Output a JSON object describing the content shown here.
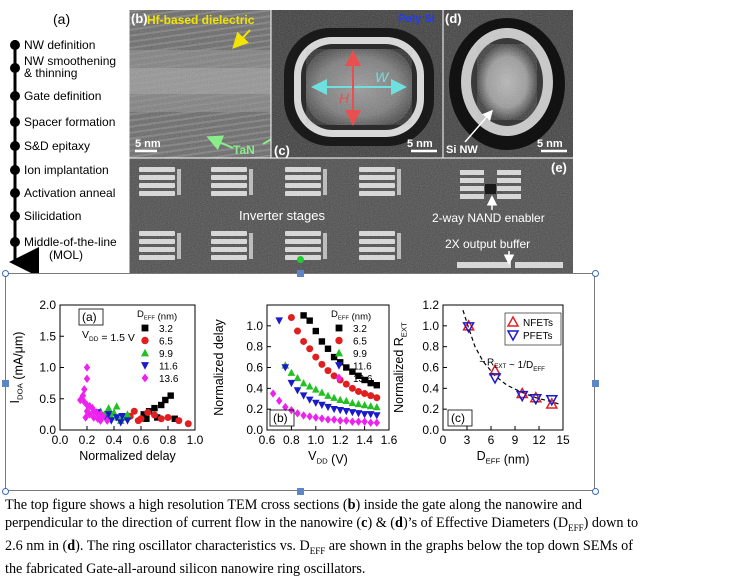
{
  "top_figure": {
    "panel_a_label": "(a)",
    "process_steps": [
      "NW definition",
      "NW smoothening & thinning",
      "Gate definition",
      "Spacer formation",
      "S&D epitaxy",
      "Ion implantation",
      "Activation anneal",
      "Silicidation",
      "Middle-of-the-line (MOL)"
    ],
    "panel_b_label": "(b)",
    "panel_b_annotation": "Hf-based dielectric",
    "panel_b_scale": "5 nm",
    "panel_b_tan": "TaN",
    "panel_c_label": "(c)",
    "panel_c_polysi": "Poly Si",
    "panel_c_w": "W",
    "panel_c_h": "H",
    "panel_c_scale": "5 nm",
    "panel_d_label": "(d)",
    "panel_d_sinw": "Si NW",
    "panel_d_scale": "5 nm",
    "panel_e_label": "(e)",
    "panel_e_inverter": "Inverter stages",
    "panel_e_nand": "2-way NAND enabler",
    "panel_e_buffer": "2X output buffer"
  },
  "chart_data": [
    {
      "type": "scatter",
      "panel_label": "(a)",
      "annotation": "V_DD = 1.5 V",
      "xlabel": "Normalized delay",
      "ylabel": "I_DOA (mA/μm)",
      "xlim": [
        0.0,
        1.0
      ],
      "ylim": [
        0.0,
        2.0
      ],
      "xticks": [
        "0.0",
        "0.2",
        "0.4",
        "0.6",
        "0.8",
        "1.0"
      ],
      "yticks": [
        "0.0",
        "0.5",
        "1.0",
        "1.5",
        "2.0"
      ],
      "legend_title": "D_EFF (nm)",
      "legend_placement": "top-right",
      "series": [
        {
          "name": "3.2",
          "color": "#000000",
          "marker": "square",
          "points": [
            [
              0.62,
              0.25
            ],
            [
              0.66,
              0.3
            ],
            [
              0.7,
              0.35
            ],
            [
              0.75,
              0.4
            ],
            [
              0.78,
              0.48
            ],
            [
              0.82,
              0.55
            ],
            [
              0.85,
              0.18
            ],
            [
              0.72,
              0.2
            ],
            [
              0.64,
              0.18
            ]
          ]
        },
        {
          "name": "6.5",
          "color": "#e02020",
          "marker": "circle",
          "points": [
            [
              0.5,
              0.2
            ],
            [
              0.55,
              0.3
            ],
            [
              0.6,
              0.18
            ],
            [
              0.65,
              0.28
            ],
            [
              0.7,
              0.24
            ],
            [
              0.75,
              0.18
            ],
            [
              0.8,
              0.2
            ],
            [
              0.88,
              0.15
            ],
            [
              0.95,
              0.1
            ],
            [
              0.58,
              0.15
            ],
            [
              0.52,
              0.22
            ]
          ]
        },
        {
          "name": "9.9",
          "color": "#22c022",
          "marker": "triangle-up",
          "points": [
            [
              0.3,
              0.3
            ],
            [
              0.33,
              0.25
            ],
            [
              0.36,
              0.35
            ],
            [
              0.4,
              0.28
            ],
            [
              0.43,
              0.2
            ],
            [
              0.45,
              0.15
            ],
            [
              0.48,
              0.2
            ],
            [
              0.5,
              0.25
            ],
            [
              0.38,
              0.22
            ],
            [
              0.42,
              0.38
            ]
          ]
        },
        {
          "name": "11.6",
          "color": "#1a1acc",
          "marker": "triangle-down",
          "points": [
            [
              0.3,
              0.2
            ],
            [
              0.34,
              0.18
            ],
            [
              0.38,
              0.15
            ],
            [
              0.42,
              0.2
            ],
            [
              0.45,
              0.12
            ],
            [
              0.5,
              0.15
            ],
            [
              0.36,
              0.25
            ],
            [
              0.28,
              0.28
            ],
            [
              0.46,
              0.22
            ]
          ]
        },
        {
          "name": "13.6",
          "color": "#ee22ee",
          "marker": "diamond",
          "points": [
            [
              0.2,
              1.0
            ],
            [
              0.2,
              0.82
            ],
            [
              0.18,
              0.65
            ],
            [
              0.17,
              0.55
            ],
            [
              0.15,
              0.48
            ],
            [
              0.18,
              0.45
            ],
            [
              0.2,
              0.4
            ],
            [
              0.22,
              0.38
            ],
            [
              0.24,
              0.35
            ],
            [
              0.25,
              0.3
            ],
            [
              0.27,
              0.28
            ],
            [
              0.3,
              0.25
            ],
            [
              0.32,
              0.22
            ],
            [
              0.2,
              0.3
            ],
            [
              0.22,
              0.25
            ],
            [
              0.25,
              0.2
            ],
            [
              0.28,
              0.18
            ],
            [
              0.3,
              0.15
            ],
            [
              0.35,
              0.15
            ],
            [
              0.19,
              0.2
            ]
          ]
        }
      ]
    },
    {
      "type": "scatter",
      "panel_label": "(b)",
      "xlabel": "V_DD (V)",
      "ylabel": "Normalized delay",
      "xlim": [
        0.6,
        1.6
      ],
      "ylim": [
        0.0,
        1.2
      ],
      "xticks": [
        "0.6",
        "0.8",
        "1.0",
        "1.2",
        "1.4",
        "1.6"
      ],
      "yticks": [
        "0.0",
        "0.2",
        "0.4",
        "0.6",
        "0.8",
        "1.0"
      ],
      "legend_title": "D_EFF (nm)",
      "legend_placement": "top-right",
      "series": [
        {
          "name": "3.2",
          "color": "#000000",
          "marker": "square",
          "points": [
            [
              0.9,
              1.1
            ],
            [
              0.95,
              1.05
            ],
            [
              1.0,
              0.95
            ],
            [
              1.05,
              0.85
            ],
            [
              1.1,
              0.78
            ],
            [
              1.15,
              0.7
            ],
            [
              1.2,
              0.65
            ],
            [
              1.25,
              0.6
            ],
            [
              1.3,
              0.56
            ],
            [
              1.35,
              0.52
            ],
            [
              1.4,
              0.48
            ],
            [
              1.45,
              0.45
            ],
            [
              1.5,
              0.43
            ]
          ]
        },
        {
          "name": "6.5",
          "color": "#e02020",
          "marker": "circle",
          "points": [
            [
              0.8,
              1.08
            ],
            [
              0.85,
              0.95
            ],
            [
              0.9,
              0.85
            ],
            [
              0.95,
              0.78
            ],
            [
              1.0,
              0.7
            ],
            [
              1.05,
              0.63
            ],
            [
              1.1,
              0.57
            ],
            [
              1.15,
              0.52
            ],
            [
              1.2,
              0.48
            ],
            [
              1.25,
              0.44
            ],
            [
              1.3,
              0.4
            ],
            [
              1.35,
              0.37
            ],
            [
              1.4,
              0.35
            ],
            [
              1.45,
              0.33
            ],
            [
              1.5,
              0.31
            ]
          ]
        },
        {
          "name": "9.9",
          "color": "#22c022",
          "marker": "triangle-up",
          "points": [
            [
              0.75,
              0.62
            ],
            [
              0.8,
              0.55
            ],
            [
              0.85,
              0.5
            ],
            [
              0.9,
              0.45
            ],
            [
              0.95,
              0.42
            ],
            [
              1.0,
              0.39
            ],
            [
              1.05,
              0.36
            ],
            [
              1.1,
              0.33
            ],
            [
              1.15,
              0.31
            ],
            [
              1.2,
              0.29
            ],
            [
              1.25,
              0.28
            ],
            [
              1.3,
              0.26
            ],
            [
              1.35,
              0.25
            ],
            [
              1.4,
              0.24
            ],
            [
              1.45,
              0.23
            ],
            [
              1.5,
              0.22
            ]
          ]
        },
        {
          "name": "11.6",
          "color": "#1a1acc",
          "marker": "triangle-down",
          "points": [
            [
              0.7,
              1.05
            ],
            [
              0.75,
              0.6
            ],
            [
              0.8,
              0.45
            ],
            [
              0.85,
              0.38
            ],
            [
              0.9,
              0.33
            ],
            [
              0.95,
              0.29
            ],
            [
              1.0,
              0.26
            ],
            [
              1.05,
              0.24
            ],
            [
              1.1,
              0.22
            ],
            [
              1.15,
              0.2
            ],
            [
              1.2,
              0.19
            ],
            [
              1.25,
              0.18
            ],
            [
              1.3,
              0.17
            ],
            [
              1.35,
              0.16
            ],
            [
              1.4,
              0.15
            ],
            [
              1.45,
              0.15
            ],
            [
              1.5,
              0.14
            ]
          ]
        },
        {
          "name": "13.6",
          "color": "#ee22ee",
          "marker": "diamond",
          "points": [
            [
              0.65,
              0.35
            ],
            [
              0.7,
              0.28
            ],
            [
              0.75,
              0.22
            ],
            [
              0.8,
              0.19
            ],
            [
              0.85,
              0.16
            ],
            [
              0.9,
              0.14
            ],
            [
              0.95,
              0.13
            ],
            [
              1.0,
              0.12
            ],
            [
              1.05,
              0.11
            ],
            [
              1.1,
              0.1
            ],
            [
              1.15,
              0.1
            ],
            [
              1.2,
              0.09
            ],
            [
              1.25,
              0.09
            ],
            [
              1.3,
              0.08
            ],
            [
              1.35,
              0.08
            ],
            [
              1.4,
              0.08
            ],
            [
              1.45,
              0.07
            ],
            [
              1.5,
              0.07
            ]
          ]
        }
      ]
    },
    {
      "type": "scatter",
      "panel_label": "(c)",
      "xlabel": "D_EFF (nm)",
      "ylabel": "Normalized R_EXT",
      "xlim": [
        0,
        15
      ],
      "ylim": [
        0.0,
        1.2
      ],
      "xticks": [
        "0",
        "3",
        "6",
        "9",
        "12",
        "15"
      ],
      "yticks": [
        "0.0",
        "0.2",
        "0.4",
        "0.6",
        "0.8",
        "1.0",
        "1.2"
      ],
      "annotation": "R_EXT ~ 1/D_EFF",
      "legend_placement": "top-right",
      "series": [
        {
          "name": "NFETs",
          "color": "#e02020",
          "marker": "triangle-up-open",
          "points": [
            [
              3.2,
              1.0
            ],
            [
              6.5,
              0.57
            ],
            [
              9.9,
              0.35
            ],
            [
              11.6,
              0.31
            ],
            [
              13.6,
              0.25
            ]
          ]
        },
        {
          "name": "PFETs",
          "color": "#1a1acc",
          "marker": "triangle-down-open",
          "points": [
            [
              3.2,
              0.99
            ],
            [
              6.5,
              0.5
            ],
            [
              9.9,
              0.33
            ],
            [
              11.6,
              0.3
            ],
            [
              13.6,
              0.29
            ]
          ]
        }
      ],
      "fit_curve": {
        "style": "dashed",
        "points": [
          [
            2.5,
            1.15
          ],
          [
            3.2,
            0.98
          ],
          [
            4,
            0.8
          ],
          [
            5,
            0.66
          ],
          [
            6.5,
            0.52
          ],
          [
            8,
            0.43
          ],
          [
            9.9,
            0.36
          ],
          [
            11.6,
            0.31
          ],
          [
            13.6,
            0.27
          ],
          [
            14.5,
            0.25
          ]
        ]
      }
    }
  ],
  "caption": {
    "lines": [
      "The top figure shows a high resolution TEM cross sections (b) inside the gate along the nanowire and",
      "perpendicular to the direction of current flow in the nanowire (c) & (d)’s of Effective Diameters (D_EFF) down to",
      "2.6 nm in (d). The ring oscillator characteristics vs. D_EFF are shown in the graphs below the top down SEMs of",
      "the fabricated Gate-all-around silicon nanowire ring oscillators."
    ]
  },
  "colors": {
    "nfet": "#e02020",
    "pfet": "#1a1acc",
    "annotation_yellow": "#f2e400",
    "annotation_cyan": "#6ee0e0",
    "annotation_green": "#88ee88",
    "annotation_red": "#e85050",
    "polysi_blue": "#1e3cff"
  }
}
